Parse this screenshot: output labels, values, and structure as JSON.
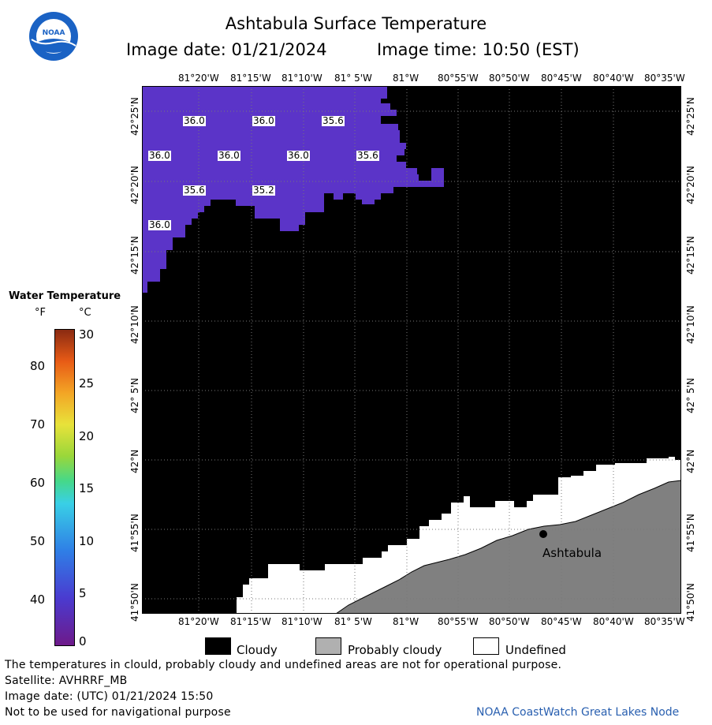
{
  "header": {
    "title": "Ashtabula Surface Temperature",
    "image_date": "Image date: 01/21/2024",
    "image_time": "Image time: 10:50 (EST)",
    "logo_text": "NOAA"
  },
  "map": {
    "lon_labels": [
      "81°20'W",
      "81°15'W",
      "81°10'W",
      "81° 5'W",
      "81°W",
      "80°55'W",
      "80°50'W",
      "80°45'W",
      "80°40'W",
      "80°35'W"
    ],
    "lat_labels": [
      "42°25'N",
      "42°20'N",
      "42°15'N",
      "42°10'N",
      "42° 5'N",
      "42°N",
      "41°55'N",
      "41°50'N"
    ],
    "temps": [
      "36.0",
      "36.0",
      "35.6",
      "36.0",
      "36.0",
      "36.0",
      "35.6",
      "35.6",
      "35.2",
      "36.0"
    ],
    "city": "Ashtabula",
    "colors": {
      "water": "#5b34c8",
      "cloudy": "#000000",
      "probably_cloudy": "#808080",
      "undefined": "#ffffff"
    }
  },
  "legend": {
    "title": "Water Temperature",
    "unit_f": "°F",
    "unit_c": "°C",
    "f_ticks": [
      "80",
      "70",
      "60",
      "50",
      "40"
    ],
    "c_ticks": [
      "30",
      "25",
      "20",
      "15",
      "10",
      "5",
      "0"
    ]
  },
  "key": {
    "cloudy": "Cloudy",
    "probably_cloudy": "Probably cloudy",
    "undefined": "Undefined"
  },
  "footer": {
    "note": "The temperatures in clould, probably cloudy and undefined areas are not for operational purpose.",
    "satellite": "Satellite: AVHRRF_MB",
    "utc_date": "Image date: (UTC) 01/21/2024  15:50",
    "nav_note": "Not to be used for navigational purpose",
    "credit": "NOAA CoastWatch Great Lakes Node"
  }
}
